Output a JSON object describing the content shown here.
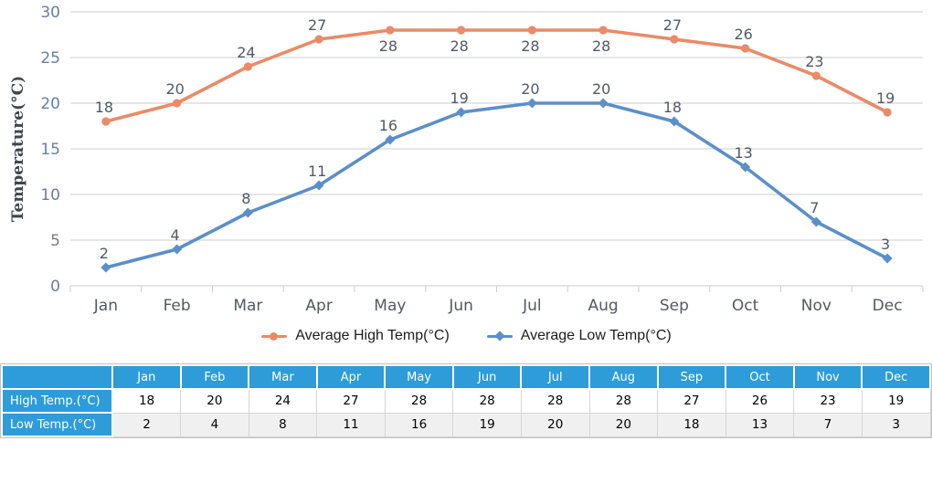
{
  "chart_data": {
    "type": "line",
    "title": "",
    "categories": [
      "Jan",
      "Feb",
      "Mar",
      "Apr",
      "May",
      "Jun",
      "Jul",
      "Aug",
      "Sep",
      "Oct",
      "Nov",
      "Dec"
    ],
    "series": [
      {
        "name": "Average High Temp(°C)",
        "values": [
          18,
          20,
          24,
          27,
          28,
          28,
          28,
          28,
          27,
          26,
          23,
          19
        ],
        "color": "#EB8A67",
        "marker": "circle",
        "label_positions": [
          "above",
          "above",
          "above",
          "above",
          "below",
          "below",
          "below",
          "below",
          "above",
          "above",
          "above",
          "above"
        ]
      },
      {
        "name": "Average Low Temp(°C)",
        "values": [
          2,
          4,
          8,
          11,
          16,
          19,
          20,
          20,
          18,
          13,
          7,
          3
        ],
        "color": "#5B8FC9",
        "marker": "diamond",
        "label_positions": [
          "above",
          "above",
          "above",
          "above",
          "above",
          "above",
          "above",
          "above",
          "above",
          "above",
          "above",
          "above"
        ]
      }
    ],
    "xlabel": "",
    "ylabel": "Temperature(°C)",
    "ylim": [
      0,
      30
    ],
    "ytick_step": 5,
    "grid": true,
    "legend_position": "bottom"
  },
  "table": {
    "corner_label": "",
    "columns": [
      "Jan",
      "Feb",
      "Mar",
      "Apr",
      "May",
      "Jun",
      "Jul",
      "Aug",
      "Sep",
      "Oct",
      "Nov",
      "Dec"
    ],
    "rows": [
      {
        "label": "High Temp.(°C)",
        "values": [
          18,
          20,
          24,
          27,
          28,
          28,
          28,
          28,
          27,
          26,
          23,
          19
        ]
      },
      {
        "label": "Low Temp.(°C)",
        "values": [
          2,
          4,
          8,
          11,
          16,
          19,
          20,
          20,
          18,
          13,
          7,
          3
        ]
      }
    ]
  },
  "colors": {
    "high_series": "#EB8A67",
    "low_series": "#5B8FC9",
    "grid_line": "#CDCDCD",
    "y_tick_text": "#66809F",
    "axis_text": "#4E5A66",
    "table_header_bg": "#2D9CD9",
    "table_alt_row_bg": "#F0F0F0"
  }
}
